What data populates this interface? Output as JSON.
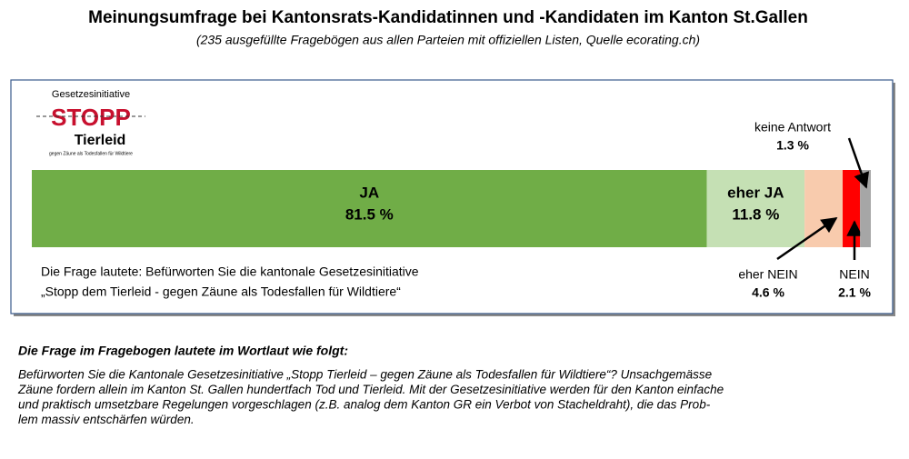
{
  "chart_data": {
    "type": "stacked-bar",
    "title": "Meinungsumfrage bei Kantonsrats-Kandidatinnen und -Kandidaten im Kanton St.Gallen",
    "subtitle": "(235 ausgefüllte Fragebögen aus allen Parteien mit offiziellen Listen, Quelle ecorating.ch)",
    "logo": {
      "caption": "Gesetzesinitiative",
      "word1": "STOPP",
      "word2": "Tierleid",
      "tagline": "gegen Zäune als Todesfallen für Wildtiere"
    },
    "question": [
      "Die Frage lautete: Befürworten Sie die kantonale Gesetzesinitiative",
      "„Stopp dem Tierleid - gegen Zäune als Todesfallen für Wildtiere“"
    ],
    "xlim": [
      0,
      101.3
    ],
    "series": [
      {
        "name": "JA",
        "color": "#70ad47",
        "values": [
          81.5
        ],
        "value_labels": [
          "81.5 %"
        ]
      },
      {
        "name": "eher JA",
        "color": "#c5e0b4",
        "values": [
          11.8
        ],
        "value_labels": [
          "11.8 %"
        ]
      },
      {
        "name": "eher NEIN",
        "color": "#f8cbad",
        "values": [
          4.6
        ],
        "value_labels": [
          "4.6 %"
        ]
      },
      {
        "name": "NEIN",
        "color": "#ff0000",
        "values": [
          2.1
        ],
        "value_labels": [
          "2.1 %"
        ]
      },
      {
        "name": "keine Antwort",
        "color": "#a6a6a6",
        "values": [
          1.3
        ],
        "value_labels": [
          "1.3 %"
        ]
      }
    ]
  },
  "footnote": {
    "heading": "Die Frage im Fragebogen lautete im Wortlaut wie folgt:",
    "lines": [
      "Befürworten Sie die Kantonale Gesetzesinitiative „Stopp Tierleid – gegen Zäune als Todesfallen für Wildtiere“? Unsachgemässe",
      "Zäune fordern allein im Kanton St. Gallen hundertfach Tod und Tierleid. Mit der Gesetzesinitiative werden für den Kanton einfache",
      "und praktisch umsetzbare Regelungen vorgeschlagen (z.B. analog dem Kanton GR ein Verbot von Stacheldraht), die das Prob-",
      "lem massiv entschärfen würden."
    ]
  }
}
